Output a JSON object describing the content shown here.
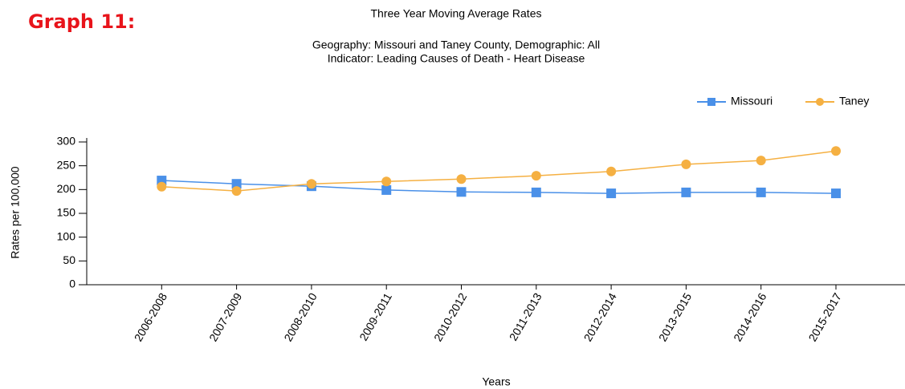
{
  "heading": "Graph 11:",
  "chart_data": {
    "type": "line",
    "title": "Three Year Moving Average Rates",
    "subtitle": [
      "Geography: Missouri and Taney County, Demographic: All",
      "Indicator: Leading Causes of Death  - Heart Disease"
    ],
    "x_label": "Years",
    "y_label": "Rates per 100,000",
    "categories": [
      "2006-2008",
      "2007-2009",
      "2008-2010",
      "2009-2011",
      "2010-2012",
      "2011-2013",
      "2012-2014",
      "2013-2015",
      "2014-2016",
      "2015-2017"
    ],
    "series": [
      {
        "name": "Missouri",
        "color": "#4a90e8",
        "marker": "square",
        "values": [
          219,
          212,
          207,
          199,
          195,
          194,
          192,
          194,
          194,
          192
        ]
      },
      {
        "name": "Taney",
        "color": "#f5b042",
        "marker": "circle",
        "values": [
          206,
          197,
          212,
          217,
          222,
          229,
          238,
          253,
          261,
          281
        ]
      }
    ],
    "ylim": [
      0,
      300
    ],
    "yticks": [
      0,
      50,
      100,
      150,
      200,
      250,
      300
    ],
    "legend": "top-right"
  }
}
